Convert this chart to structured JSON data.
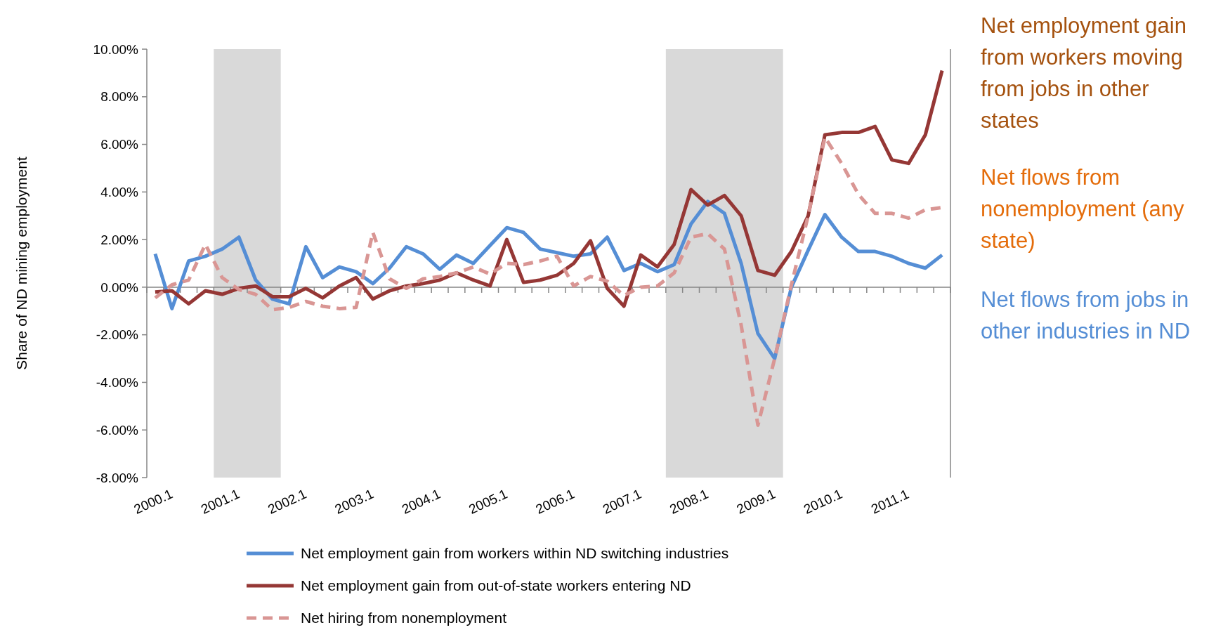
{
  "chart_data": {
    "type": "line",
    "ylabel": "Share of ND mining employment",
    "categories": [
      "2000.1",
      null,
      null,
      null,
      "2001.1",
      null,
      null,
      null,
      "2002.1",
      null,
      null,
      null,
      "2003.1",
      null,
      null,
      null,
      "2004.1",
      null,
      null,
      null,
      "2005.1",
      null,
      null,
      null,
      "2006.1",
      null,
      null,
      null,
      "2007.1",
      null,
      null,
      null,
      "2008.1",
      null,
      null,
      null,
      "2009.1",
      null,
      null,
      null,
      "2010.1",
      null,
      null,
      null,
      "2011.1",
      null,
      null,
      null
    ],
    "ylim": [
      -8,
      10
    ],
    "yticks": [
      {
        "value": -8,
        "label": "-8.00%"
      },
      {
        "value": -6,
        "label": "-6.00%"
      },
      {
        "value": -4,
        "label": "-4.00%"
      },
      {
        "value": -2,
        "label": "-2.00%"
      },
      {
        "value": 0,
        "label": "0.00%"
      },
      {
        "value": 2,
        "label": "2.00%"
      },
      {
        "value": 4,
        "label": "4.00%"
      },
      {
        "value": 6,
        "label": "6.00%"
      },
      {
        "value": 8,
        "label": "8.00%"
      },
      {
        "value": 10,
        "label": "10.00%"
      }
    ],
    "series": [
      {
        "name": "Net employment gain from workers within ND switching industries",
        "color": "#558ed5",
        "line_style": "solid",
        "values": [
          1.4,
          -0.9,
          1.1,
          1.3,
          1.6,
          2.1,
          0.3,
          -0.5,
          -0.7,
          1.7,
          0.4,
          0.85,
          0.65,
          0.15,
          0.8,
          1.7,
          1.4,
          0.75,
          1.35,
          1.0,
          1.75,
          2.5,
          2.3,
          1.6,
          1.45,
          1.3,
          1.4,
          2.1,
          0.7,
          1.0,
          0.65,
          0.95,
          2.65,
          3.6,
          3.1,
          1.0,
          -1.95,
          -3.0,
          0.0,
          1.55,
          3.05,
          2.1,
          1.5,
          1.5,
          1.3,
          1.0,
          0.8,
          1.35
        ]
      },
      {
        "name": "Net employment gain from out-of-state workers entering ND",
        "color": "#953735",
        "line_style": "solid",
        "values": [
          -0.2,
          -0.15,
          -0.7,
          -0.15,
          -0.3,
          -0.05,
          0.05,
          -0.4,
          -0.4,
          -0.05,
          -0.45,
          0.05,
          0.4,
          -0.5,
          -0.15,
          0.05,
          0.15,
          0.3,
          0.6,
          0.3,
          0.05,
          2.0,
          0.2,
          0.3,
          0.5,
          1.0,
          1.95,
          -0.05,
          -0.8,
          1.35,
          0.85,
          1.8,
          4.1,
          3.45,
          3.85,
          3.0,
          0.7,
          0.5,
          1.5,
          3.0,
          6.4,
          6.5,
          6.5,
          6.75,
          5.35,
          5.2,
          6.4,
          9.1
        ]
      },
      {
        "name": "Net hiring from nonemployment",
        "color": "#d99694",
        "line_style": "dashed",
        "values": [
          -0.45,
          0.1,
          0.3,
          1.8,
          0.4,
          -0.1,
          -0.3,
          -0.95,
          -0.85,
          -0.6,
          -0.8,
          -0.9,
          -0.85,
          2.3,
          0.35,
          -0.05,
          0.35,
          0.45,
          0.6,
          0.85,
          0.55,
          1.0,
          0.95,
          1.1,
          1.3,
          0.05,
          0.45,
          0.25,
          -0.35,
          0.0,
          0.05,
          0.6,
          2.1,
          2.25,
          1.6,
          -1.6,
          -5.8,
          -3.0,
          0.1,
          3.0,
          6.3,
          5.2,
          3.9,
          3.1,
          3.1,
          2.9,
          3.25,
          3.35
        ]
      }
    ],
    "legend": "bottom",
    "marker": "none",
    "annotations": [
      "Net employment gain from workers moving from jobs in other states",
      "Net flows from nonemployment (any state)",
      "Net flows from jobs in other industries in ND"
    ]
  }
}
